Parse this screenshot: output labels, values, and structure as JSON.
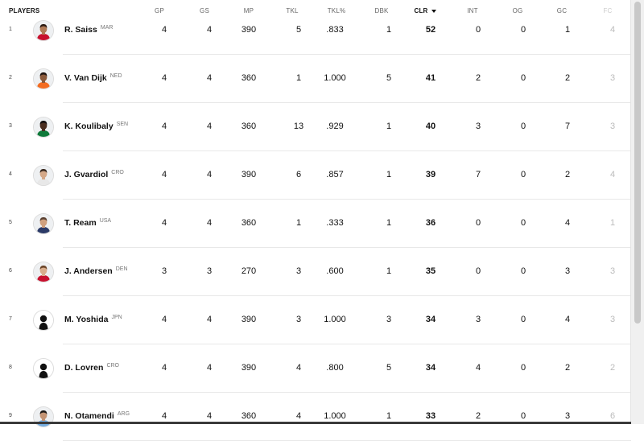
{
  "columns": {
    "players": "PLAYERS",
    "gp": "GP",
    "gs": "GS",
    "mp": "MP",
    "tkl": "TKL",
    "tkl_pct": "TKL%",
    "dbk": "DBK",
    "clr": "CLR",
    "int": "INT",
    "og": "OG",
    "gc": "GC",
    "fc": "FC"
  },
  "sorted_column": "CLR",
  "rows": [
    {
      "rank": "1",
      "name": "R. Saiss",
      "country": "MAR",
      "gp": "4",
      "gs": "4",
      "mp": "390",
      "tkl": "5",
      "tkl_pct": ".833",
      "dbk": "1",
      "clr": "52",
      "int": "0",
      "og": "0",
      "gc": "1",
      "fc": "4",
      "avatar": "photo",
      "skin": "#b07a56",
      "shirt": "#c8102e",
      "hair": "#2b1a12"
    },
    {
      "rank": "2",
      "name": "V. Van Dijk",
      "country": "NED",
      "gp": "4",
      "gs": "4",
      "mp": "360",
      "tkl": "1",
      "tkl_pct": "1.000",
      "dbk": "5",
      "clr": "41",
      "int": "2",
      "og": "0",
      "gc": "2",
      "fc": "3",
      "avatar": "photo",
      "skin": "#8a5a3c",
      "shirt": "#f36c21",
      "hair": "#1d1410"
    },
    {
      "rank": "3",
      "name": "K. Koulibaly",
      "country": "SEN",
      "gp": "4",
      "gs": "4",
      "mp": "360",
      "tkl": "13",
      "tkl_pct": ".929",
      "dbk": "1",
      "clr": "40",
      "int": "3",
      "og": "0",
      "gc": "7",
      "fc": "3",
      "avatar": "photo",
      "skin": "#4a2e20",
      "shirt": "#0f7a3a",
      "hair": "#141010"
    },
    {
      "rank": "4",
      "name": "J. Gvardiol",
      "country": "CRO",
      "gp": "4",
      "gs": "4",
      "mp": "390",
      "tkl": "6",
      "tkl_pct": ".857",
      "dbk": "1",
      "clr": "39",
      "int": "7",
      "og": "0",
      "gc": "2",
      "fc": "4",
      "avatar": "photo",
      "skin": "#d4a888",
      "shirt": "#e8e8e8",
      "hair": "#3a2a20"
    },
    {
      "rank": "5",
      "name": "T. Ream",
      "country": "USA",
      "gp": "4",
      "gs": "4",
      "mp": "360",
      "tkl": "1",
      "tkl_pct": ".333",
      "dbk": "1",
      "clr": "36",
      "int": "0",
      "og": "0",
      "gc": "4",
      "fc": "1",
      "avatar": "photo",
      "skin": "#cfa07e",
      "shirt": "#2b3a67",
      "hair": "#5a4030"
    },
    {
      "rank": "6",
      "name": "J. Andersen",
      "country": "DEN",
      "gp": "3",
      "gs": "3",
      "mp": "270",
      "tkl": "3",
      "tkl_pct": ".600",
      "dbk": "1",
      "clr": "35",
      "int": "0",
      "og": "0",
      "gc": "3",
      "fc": "3",
      "avatar": "photo",
      "skin": "#d9ad8c",
      "shirt": "#c8102e",
      "hair": "#6a4428"
    },
    {
      "rank": "7",
      "name": "M. Yoshida",
      "country": "JPN",
      "gp": "4",
      "gs": "4",
      "mp": "390",
      "tkl": "3",
      "tkl_pct": "1.000",
      "dbk": "3",
      "clr": "34",
      "int": "3",
      "og": "0",
      "gc": "4",
      "fc": "3",
      "avatar": "silhouette"
    },
    {
      "rank": "8",
      "name": "D. Lovren",
      "country": "CRO",
      "gp": "4",
      "gs": "4",
      "mp": "390",
      "tkl": "4",
      "tkl_pct": ".800",
      "dbk": "5",
      "clr": "34",
      "int": "4",
      "og": "0",
      "gc": "2",
      "fc": "2",
      "avatar": "silhouette"
    },
    {
      "rank": "9",
      "name": "N. Otamendi",
      "country": "ARG",
      "gp": "4",
      "gs": "4",
      "mp": "360",
      "tkl": "4",
      "tkl_pct": "1.000",
      "dbk": "1",
      "clr": "33",
      "int": "2",
      "og": "0",
      "gc": "3",
      "fc": "6",
      "avatar": "photo",
      "skin": "#c49474",
      "shirt": "#74acdf",
      "hair": "#1e1a18"
    }
  ]
}
